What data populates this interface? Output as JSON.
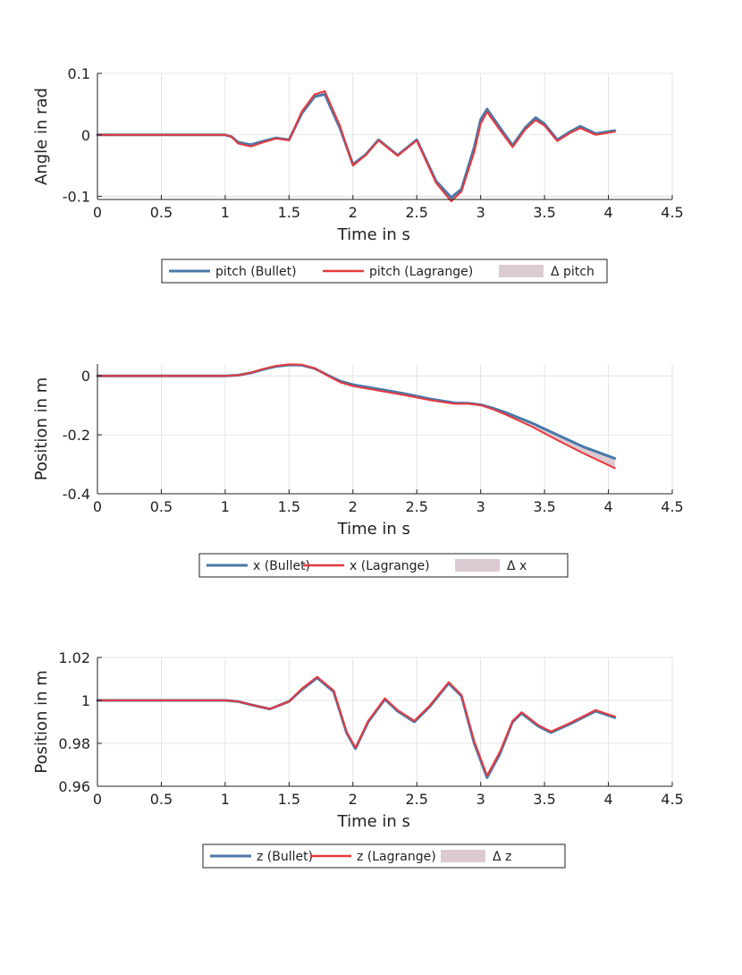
{
  "chart_data": [
    {
      "type": "line",
      "xlabel": "Time in s",
      "ylabel": "Angle in rad",
      "xlim": [
        0,
        4.5
      ],
      "ylim": [
        -0.105,
        0.1
      ],
      "xticks": [
        0,
        0.5,
        1,
        1.5,
        2,
        2.5,
        3,
        3.5,
        4,
        4.5
      ],
      "xtick_labels": [
        "0",
        "0.5",
        "1",
        "1.5",
        "2",
        "2.5",
        "3",
        "3.5",
        "4",
        "4.5"
      ],
      "yticks": [
        -0.1,
        0,
        0.1
      ],
      "ytick_labels": [
        "-0.1",
        "0",
        "0.1"
      ],
      "grid": true,
      "legend_position": "below",
      "colors": {
        "bullet": "#4a78a8",
        "lagrange": "#e8383d",
        "delta": "#dccad3"
      },
      "legend": [
        "pitch (Bullet)",
        "pitch (Lagrange)",
        "Δ pitch"
      ],
      "series": [
        {
          "name": "pitch (Bullet)",
          "x": [
            0,
            1,
            1.05,
            1.1,
            1.2,
            1.3,
            1.4,
            1.5,
            1.6,
            1.7,
            1.78,
            1.9,
            2.0,
            2.1,
            2.2,
            2.35,
            2.5,
            2.65,
            2.77,
            2.85,
            2.95,
            3.0,
            3.05,
            3.15,
            3.25,
            3.35,
            3.43,
            3.5,
            3.6,
            3.7,
            3.78,
            3.9,
            4.05
          ],
          "values": [
            0,
            0,
            -0.003,
            -0.012,
            -0.016,
            -0.01,
            -0.005,
            -0.008,
            0.035,
            0.062,
            0.066,
            0.01,
            -0.048,
            -0.032,
            -0.008,
            -0.033,
            -0.008,
            -0.075,
            -0.102,
            -0.088,
            -0.02,
            0.025,
            0.042,
            0.012,
            -0.017,
            0.012,
            0.028,
            0.018,
            -0.008,
            0.005,
            0.014,
            0.002,
            0.007
          ]
        },
        {
          "name": "pitch (Lagrange)",
          "x": [
            0,
            1,
            1.05,
            1.1,
            1.2,
            1.3,
            1.4,
            1.5,
            1.6,
            1.7,
            1.78,
            1.9,
            2.0,
            2.1,
            2.2,
            2.35,
            2.5,
            2.65,
            2.77,
            2.85,
            2.95,
            3.0,
            3.05,
            3.15,
            3.25,
            3.35,
            3.43,
            3.5,
            3.6,
            3.7,
            3.78,
            3.9,
            4.05
          ],
          "values": [
            0,
            0,
            -0.003,
            -0.014,
            -0.019,
            -0.012,
            -0.006,
            -0.009,
            0.038,
            0.066,
            0.071,
            0.014,
            -0.05,
            -0.033,
            -0.009,
            -0.034,
            -0.009,
            -0.078,
            -0.108,
            -0.092,
            -0.028,
            0.018,
            0.037,
            0.008,
            -0.02,
            0.009,
            0.024,
            0.015,
            -0.01,
            0.003,
            0.011,
            0.0,
            0.005
          ]
        }
      ]
    },
    {
      "type": "line",
      "xlabel": "Time in s",
      "ylabel": "Position in m",
      "xlim": [
        0,
        4.5
      ],
      "ylim": [
        -0.4,
        0.04
      ],
      "xticks": [
        0,
        0.5,
        1,
        1.5,
        2,
        2.5,
        3,
        3.5,
        4,
        4.5
      ],
      "xtick_labels": [
        "0",
        "0.5",
        "1",
        "1.5",
        "2",
        "2.5",
        "3",
        "3.5",
        "4",
        "4.5"
      ],
      "yticks": [
        -0.4,
        -0.2,
        0
      ],
      "ytick_labels": [
        "-0.4",
        "-0.2",
        "0"
      ],
      "grid": true,
      "legend_position": "below",
      "colors": {
        "bullet": "#4a78a8",
        "lagrange": "#e8383d",
        "delta": "#dccad3"
      },
      "legend": [
        "x (Bullet)",
        "x (Lagrange)",
        "Δ x"
      ],
      "series": [
        {
          "name": "x (Bullet)",
          "x": [
            0,
            1,
            1.1,
            1.2,
            1.3,
            1.4,
            1.5,
            1.6,
            1.7,
            1.8,
            1.9,
            2.0,
            2.2,
            2.4,
            2.6,
            2.8,
            2.9,
            3.0,
            3.1,
            3.2,
            3.4,
            3.6,
            3.8,
            4.05
          ],
          "values": [
            0,
            0,
            0.002,
            0.01,
            0.022,
            0.032,
            0.037,
            0.036,
            0.025,
            0.003,
            -0.018,
            -0.03,
            -0.045,
            -0.06,
            -0.078,
            -0.092,
            -0.093,
            -0.098,
            -0.11,
            -0.125,
            -0.16,
            -0.2,
            -0.24,
            -0.28
          ]
        },
        {
          "name": "x (Lagrange)",
          "x": [
            0,
            1,
            1.1,
            1.2,
            1.3,
            1.4,
            1.5,
            1.6,
            1.7,
            1.8,
            1.9,
            2.0,
            2.2,
            2.4,
            2.6,
            2.8,
            2.9,
            3.0,
            3.1,
            3.2,
            3.4,
            3.6,
            3.8,
            4.05
          ],
          "values": [
            0,
            0,
            0.002,
            0.011,
            0.024,
            0.034,
            0.039,
            0.038,
            0.026,
            0.001,
            -0.022,
            -0.035,
            -0.05,
            -0.065,
            -0.082,
            -0.095,
            -0.094,
            -0.1,
            -0.114,
            -0.132,
            -0.172,
            -0.218,
            -0.262,
            -0.313
          ]
        }
      ]
    },
    {
      "type": "line",
      "xlabel": "Time in s",
      "ylabel": "Position in m",
      "xlim": [
        0,
        4.5
      ],
      "ylim": [
        0.96,
        1.02
      ],
      "xticks": [
        0,
        0.5,
        1,
        1.5,
        2,
        2.5,
        3,
        3.5,
        4,
        4.5
      ],
      "xtick_labels": [
        "0",
        "0.5",
        "1",
        "1.5",
        "2",
        "2.5",
        "3",
        "3.5",
        "4",
        "4.5"
      ],
      "yticks": [
        0.96,
        0.98,
        1,
        1.02
      ],
      "ytick_labels": [
        "0.96",
        "0.98",
        "1",
        "1.02"
      ],
      "grid": true,
      "legend_position": "below",
      "colors": {
        "bullet": "#4a78a8",
        "lagrange": "#e8383d",
        "delta": "#dccad3"
      },
      "legend": [
        "z (Bullet)",
        "z (Lagrange)",
        "Δ z"
      ],
      "series": [
        {
          "name": "z (Bullet)",
          "x": [
            0,
            1,
            1.1,
            1.2,
            1.35,
            1.5,
            1.6,
            1.72,
            1.85,
            1.95,
            2.02,
            2.12,
            2.25,
            2.35,
            2.48,
            2.6,
            2.75,
            2.85,
            2.95,
            3.05,
            3.15,
            3.25,
            3.32,
            3.45,
            3.55,
            3.7,
            3.9,
            4.05
          ],
          "values": [
            1,
            1,
            0.9995,
            0.998,
            0.996,
            0.9995,
            1.005,
            1.0105,
            1.004,
            0.985,
            0.9775,
            0.99,
            1.0005,
            0.995,
            0.99,
            0.997,
            1.008,
            1.002,
            0.98,
            0.964,
            0.975,
            0.99,
            0.994,
            0.988,
            0.985,
            0.989,
            0.995,
            0.992
          ]
        },
        {
          "name": "z (Lagrange)",
          "x": [
            0,
            1,
            1.1,
            1.2,
            1.35,
            1.5,
            1.6,
            1.72,
            1.85,
            1.95,
            2.02,
            2.12,
            2.25,
            2.35,
            2.48,
            2.6,
            2.75,
            2.85,
            2.95,
            3.05,
            3.15,
            3.25,
            3.32,
            3.45,
            3.55,
            3.7,
            3.9,
            4.05
          ],
          "values": [
            1,
            1,
            0.9995,
            0.998,
            0.996,
            0.9995,
            1.0055,
            1.011,
            1.0045,
            0.9855,
            0.978,
            0.9905,
            1.001,
            0.9955,
            0.9905,
            0.9975,
            1.0085,
            1.0025,
            0.981,
            0.965,
            0.976,
            0.9905,
            0.9945,
            0.9885,
            0.9855,
            0.9895,
            0.9955,
            0.9925
          ]
        }
      ]
    }
  ]
}
